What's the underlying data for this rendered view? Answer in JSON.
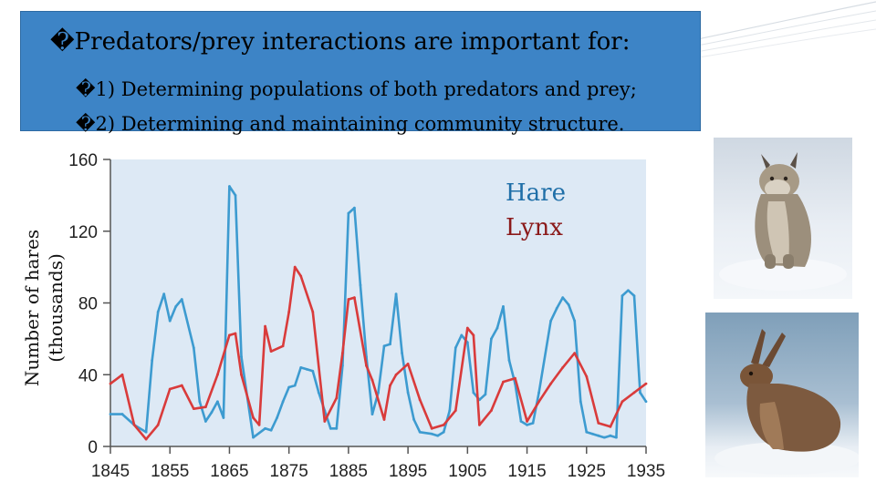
{
  "slide": {
    "title": "�Predators/prey interactions are important for:",
    "bullets": [
      {
        "marker": "�",
        "text": "1) Determining populations of both predators and prey;"
      },
      {
        "marker": "�",
        "text": "2) Determining and maintaining community structure."
      }
    ]
  },
  "colors": {
    "accent": "#3d84c6",
    "plot_bg": "#dde9f5",
    "hare": "#3d9bd0",
    "lynx": "#d93b3b",
    "hare_label": "#1f6fa8",
    "lynx_label": "#8b1a1a"
  },
  "photos": {
    "lynx": "lynx-photo",
    "hare": "hare-photo"
  },
  "chart_data": {
    "type": "line",
    "ylabel": "Number of hares (thousands)",
    "ylabel_lines": [
      "Number of hares",
      "(thousands)"
    ],
    "xlim": [
      1845,
      1935
    ],
    "ylim": [
      0,
      160
    ],
    "xticks": [
      1845,
      1855,
      1865,
      1875,
      1885,
      1895,
      1905,
      1915,
      1925,
      1935
    ],
    "yticks": [
      0,
      40,
      80,
      120,
      160
    ],
    "grid": false,
    "legend_placement": "top-right",
    "series": [
      {
        "name": "Hare",
        "color": "#3d9bd0",
        "x": [
          1845,
          1847,
          1849,
          1851,
          1852,
          1853,
          1854,
          1855,
          1856,
          1857,
          1859,
          1860,
          1861,
          1862,
          1863,
          1864,
          1865,
          1866,
          1867,
          1869,
          1871,
          1872,
          1873,
          1874,
          1875,
          1876,
          1877,
          1878,
          1879,
          1880,
          1881,
          1882,
          1883,
          1884,
          1885,
          1886,
          1887,
          1888,
          1889,
          1890,
          1891,
          1892,
          1893,
          1894,
          1895,
          1896,
          1897,
          1899,
          1900,
          1901,
          1902,
          1903,
          1904,
          1905,
          1906,
          1907,
          1908,
          1909,
          1910,
          1911,
          1912,
          1913,
          1914,
          1915,
          1916,
          1917,
          1919,
          1920,
          1921,
          1922,
          1923,
          1924,
          1925,
          1926,
          1927,
          1928,
          1929,
          1930,
          1931,
          1932,
          1933,
          1934,
          1935
        ],
        "values": [
          18,
          18,
          12,
          8,
          48,
          75,
          85,
          70,
          78,
          82,
          55,
          25,
          14,
          19,
          25,
          16,
          145,
          140,
          50,
          5,
          10,
          9,
          16,
          25,
          33,
          34,
          44,
          43,
          42,
          30,
          20,
          10,
          10,
          45,
          130,
          133,
          90,
          50,
          18,
          30,
          56,
          57,
          85,
          52,
          30,
          15,
          8,
          7,
          6,
          8,
          20,
          55,
          62,
          58,
          30,
          26,
          29,
          60,
          66,
          78,
          48,
          35,
          14,
          12,
          13,
          30,
          70,
          77,
          83,
          79,
          70,
          25,
          8,
          7,
          6,
          5,
          6,
          5,
          84,
          87,
          84,
          30,
          25
        ]
      },
      {
        "name": "Lynx",
        "color": "#d93b3b",
        "x": [
          1845,
          1847,
          1849,
          1851,
          1853,
          1855,
          1857,
          1859,
          1861,
          1863,
          1865,
          1866,
          1867,
          1869,
          1870,
          1871,
          1872,
          1874,
          1875,
          1876,
          1877,
          1879,
          1881,
          1883,
          1884,
          1885,
          1886,
          1888,
          1889,
          1891,
          1892,
          1893,
          1895,
          1897,
          1899,
          1901,
          1903,
          1905,
          1906,
          1907,
          1909,
          1911,
          1913,
          1915,
          1917,
          1919,
          1921,
          1923,
          1925,
          1927,
          1929,
          1931,
          1933,
          1935
        ],
        "values": [
          35,
          40,
          12,
          4,
          12,
          32,
          34,
          21,
          22,
          40,
          62,
          63,
          40,
          16,
          12,
          67,
          53,
          56,
          75,
          100,
          95,
          75,
          14,
          27,
          52,
          82,
          83,
          45,
          37,
          15,
          34,
          40,
          46,
          26,
          10,
          12,
          20,
          66,
          62,
          12,
          20,
          36,
          38,
          14,
          25,
          35,
          44,
          52,
          39,
          13,
          11,
          25,
          30,
          35
        ]
      }
    ]
  }
}
